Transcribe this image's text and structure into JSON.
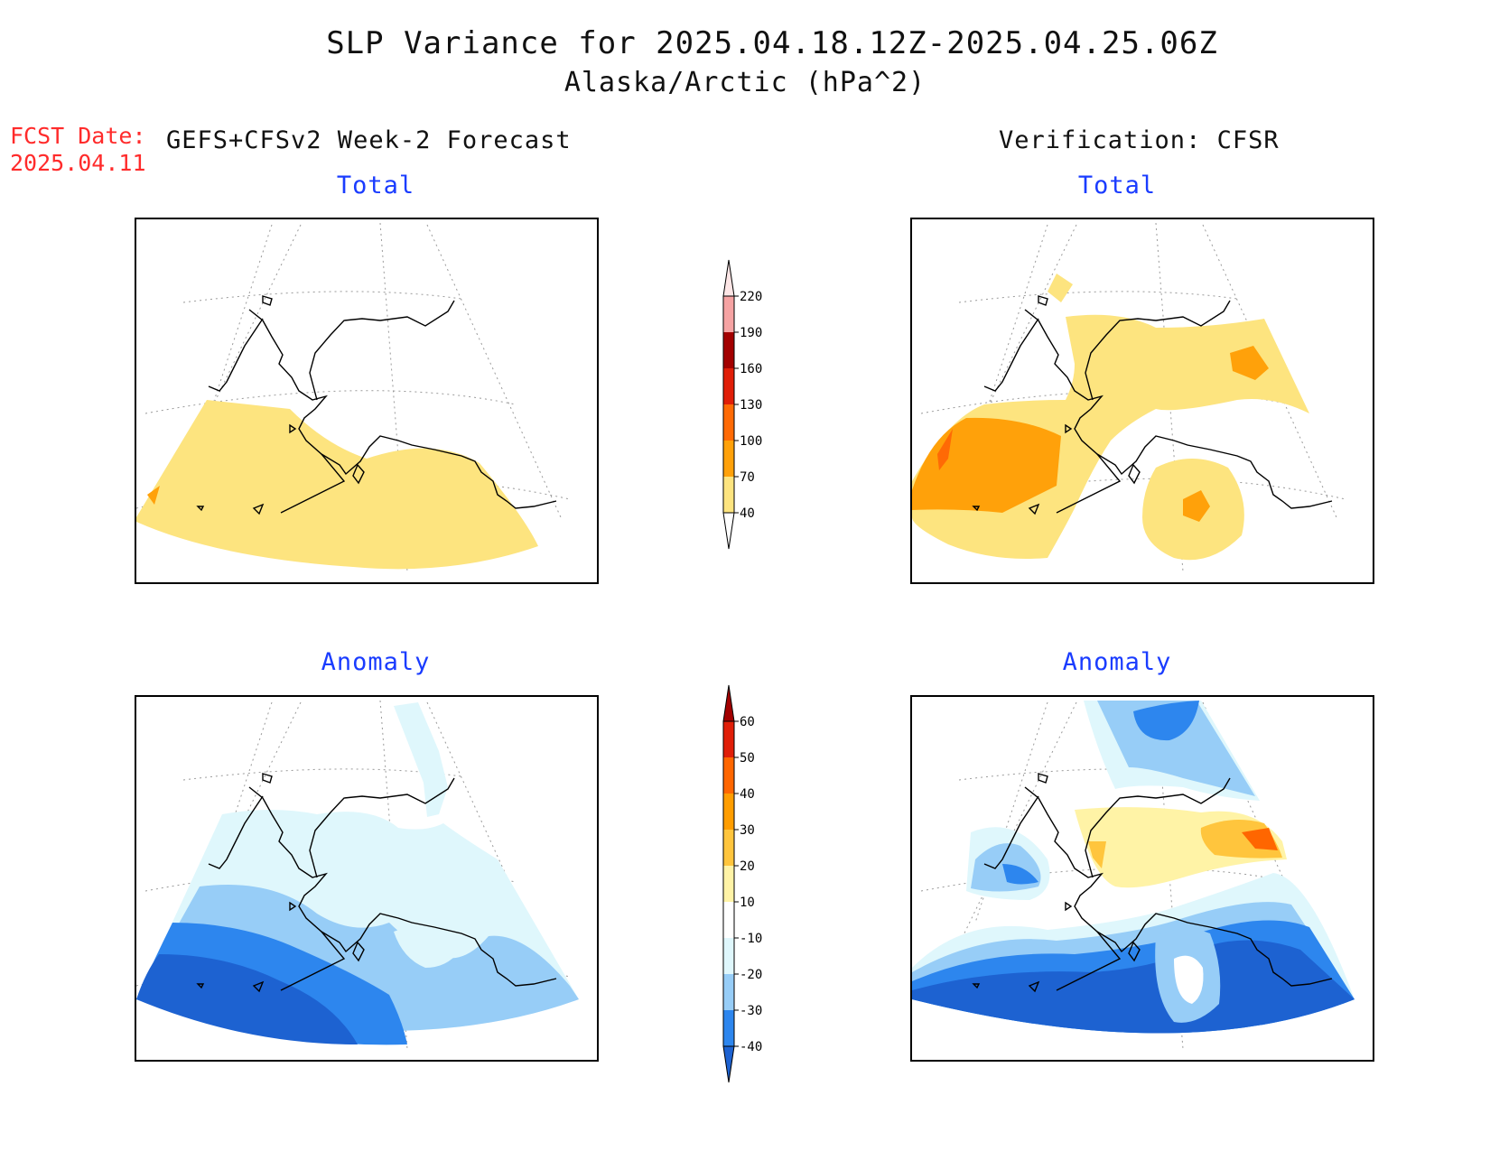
{
  "title": {
    "line1": "SLP Variance for 2025.04.18.12Z-2025.04.25.06Z",
    "line2": "Alaska/Arctic (hPa^2)"
  },
  "forecast_date": {
    "label": "FCST Date:",
    "value": "2025.04.11"
  },
  "left_heading": "GEFS+CFSv2 Week-2 Forecast",
  "right_heading": "Verification: CFSR",
  "panels": {
    "forecast_total": {
      "title": "Total"
    },
    "verification_total": {
      "title": "Total"
    },
    "forecast_anomaly": {
      "title": "Anomaly"
    },
    "verification_anomaly": {
      "title": "Anomaly"
    }
  },
  "total_colorbar": {
    "levels": [
      "40",
      "70",
      "100",
      "130",
      "160",
      "190",
      "220"
    ],
    "colors": [
      "#fde47f",
      "#ffa10a",
      "#ff6a05",
      "#e01e08",
      "#a30000",
      "#f6a3a3",
      "#fde6e6"
    ]
  },
  "anomaly_colorbar": {
    "levels": [
      "-40",
      "-30",
      "-20",
      "-10",
      "10",
      "20",
      "30",
      "40",
      "50",
      "60"
    ],
    "colors": [
      "#1d62d1",
      "#2d86ee",
      "#97cdf7",
      "#dff7fc",
      "#ffffff",
      "#fff3a6",
      "#ffc53d",
      "#ff9d00",
      "#ff6600",
      "#e01e08",
      "#a30000"
    ]
  }
}
